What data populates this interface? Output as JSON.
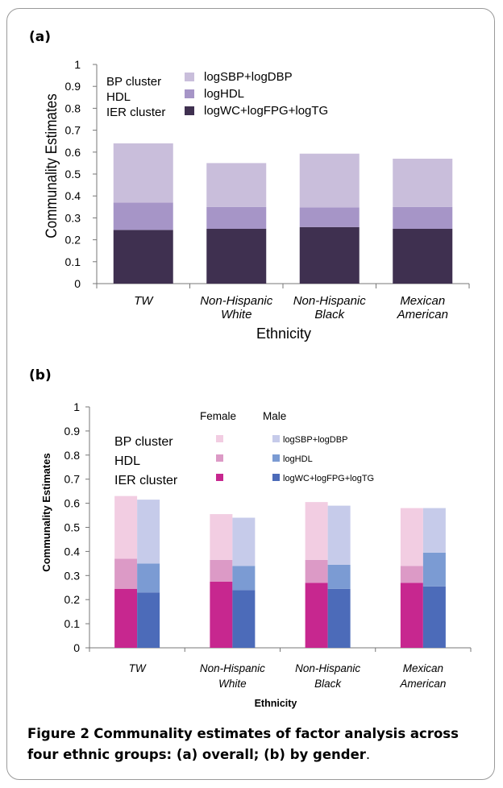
{
  "panel_a_label": "(a)",
  "panel_b_label": "(b)",
  "caption": {
    "lead": "Figure 2",
    "text": "Communality estimates of factor analysis across four ethnic groups: (a) overall; (b) by gender",
    "end": "."
  },
  "chart_data": [
    {
      "type": "bar",
      "stacked": true,
      "panel": "(a)",
      "categories": [
        "TW",
        "Non-Hispanic White",
        "Non-Hispanic Black",
        "Mexican American"
      ],
      "category_lines": [
        [
          "TW"
        ],
        [
          "Non-Hispanic",
          "White"
        ],
        [
          "Non-Hispanic",
          "Black"
        ],
        [
          "Mexican",
          "American"
        ]
      ],
      "xlabel": "Ethnicity",
      "ylabel": "Communality Estimates",
      "ylim": [
        0,
        1
      ],
      "yticks": [
        "0",
        "0.1",
        "0.2",
        "0.3",
        "0.4",
        "0.5",
        "0.6",
        "0.7",
        "0.8",
        "0.9",
        "1"
      ],
      "legend_left": [
        "BP cluster",
        "HDL",
        "IER cluster"
      ],
      "series": [
        {
          "name": "logWC+logFPG+logTG",
          "color": "#3f3050",
          "values": [
            0.245,
            0.25,
            0.258,
            0.25
          ]
        },
        {
          "name": "logHDL",
          "color": "#a695c7",
          "values": [
            0.125,
            0.1,
            0.09,
            0.1
          ]
        },
        {
          "name": "logSBP+logDBP",
          "color": "#c9bedb",
          "values": [
            0.27,
            0.2,
            0.245,
            0.22
          ]
        }
      ],
      "legend_order": [
        2,
        1,
        0
      ],
      "grid": false
    },
    {
      "type": "bar",
      "stacked": true,
      "grouped": true,
      "panel": "(b)",
      "categories": [
        "TW",
        "Non-Hispanic White",
        "Non-Hispanic Black",
        "Mexican American"
      ],
      "category_lines": [
        [
          "TW"
        ],
        [
          "Non-Hispanic",
          "White"
        ],
        [
          "Non-Hispanic",
          "Black"
        ],
        [
          "Mexican",
          "American"
        ]
      ],
      "xlabel": "Ethnicity",
      "ylabel": "Communality Estimates",
      "ylim": [
        0,
        1
      ],
      "yticks": [
        "0",
        "0.1",
        "0.2",
        "0.3",
        "0.4",
        "0.5",
        "0.6",
        "0.7",
        "0.8",
        "0.9",
        "1"
      ],
      "groups": [
        "Female",
        "Male"
      ],
      "legend_left": [
        "BP cluster",
        "HDL",
        "IER cluster"
      ],
      "legend_right": [
        "logSBP+logDBP",
        "logHDL",
        "logWC+logFPG+logTG"
      ],
      "female": {
        "colors": [
          "#c7278f",
          "#dc9ac6",
          "#f2cde2"
        ],
        "values": [
          [
            0.245,
            0.125,
            0.26
          ],
          [
            0.275,
            0.09,
            0.19
          ],
          [
            0.27,
            0.095,
            0.24
          ],
          [
            0.27,
            0.07,
            0.24
          ]
        ]
      },
      "male": {
        "colors": [
          "#4c6bb9",
          "#7b9bd3",
          "#c6cbea"
        ],
        "values": [
          [
            0.23,
            0.12,
            0.265
          ],
          [
            0.24,
            0.1,
            0.2
          ],
          [
            0.245,
            0.1,
            0.245
          ],
          [
            0.255,
            0.14,
            0.185
          ]
        ]
      },
      "grid": false
    }
  ]
}
